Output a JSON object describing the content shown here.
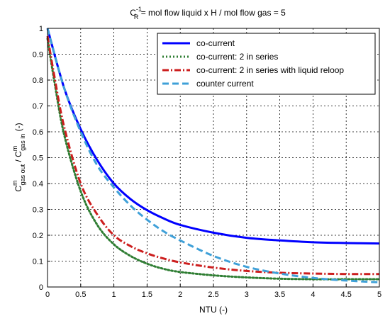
{
  "chart_data": {
    "type": "line",
    "title": {
      "prefix": "C",
      "sup": "-1",
      "sub": "R",
      "rest": " = mol flow liquid x H / mol flow gas = 5"
    },
    "xlabel": "NTU (-)",
    "ylabel": {
      "c1": "C",
      "sup1": "m",
      "sub1": "gas out",
      "mid": " / C",
      "sup2": "m",
      "sub2": "gas in",
      "end": " (-)"
    },
    "xlim": [
      0,
      5
    ],
    "ylim": [
      0,
      1
    ],
    "xticks": [
      "0",
      "0.5",
      "1",
      "1.5",
      "2",
      "2.5",
      "3",
      "3.5",
      "4",
      "4.5",
      "5"
    ],
    "yticks": [
      "0",
      "0.1",
      "0.2",
      "0.3",
      "0.4",
      "0.5",
      "0.6",
      "0.7",
      "0.8",
      "0.9",
      "1"
    ],
    "grid": true,
    "legend_position": "top-right",
    "series": [
      {
        "name": "co-current",
        "color": "#0000ff",
        "style": "solid",
        "x": [
          0,
          0.25,
          0.5,
          0.75,
          1,
          1.25,
          1.5,
          1.75,
          2,
          2.5,
          3,
          3.5,
          4,
          4.5,
          5
        ],
        "y": [
          1.0,
          0.77,
          0.61,
          0.49,
          0.4,
          0.34,
          0.297,
          0.265,
          0.24,
          0.21,
          0.19,
          0.18,
          0.173,
          0.17,
          0.168
        ]
      },
      {
        "name": "co-current: 2 in series",
        "color": "#2e7d32",
        "style": "dotted",
        "x": [
          0,
          0.1,
          0.25,
          0.5,
          0.75,
          1,
          1.25,
          1.5,
          1.75,
          2,
          2.5,
          3,
          3.5,
          4,
          4.5,
          5
        ],
        "y": [
          0.96,
          0.8,
          0.59,
          0.37,
          0.24,
          0.165,
          0.12,
          0.09,
          0.07,
          0.058,
          0.045,
          0.037,
          0.032,
          0.03,
          0.03,
          0.03
        ]
      },
      {
        "name": "co-current: 2 in series with liquid reloop",
        "color": "#cc1e1e",
        "style": "dashdot",
        "x": [
          0,
          0.1,
          0.25,
          0.5,
          0.75,
          1,
          1.25,
          1.5,
          1.75,
          2,
          2.5,
          3,
          3.5,
          4,
          4.5,
          5
        ],
        "y": [
          0.97,
          0.82,
          0.62,
          0.4,
          0.28,
          0.2,
          0.158,
          0.13,
          0.11,
          0.095,
          0.075,
          0.062,
          0.055,
          0.052,
          0.05,
          0.05
        ]
      },
      {
        "name": "counter current",
        "color": "#3fa0d8",
        "style": "dashed",
        "x": [
          0,
          0.25,
          0.5,
          0.75,
          1,
          1.25,
          1.5,
          1.75,
          2,
          2.5,
          3,
          3.5,
          4,
          4.5,
          5
        ],
        "y": [
          1.0,
          0.77,
          0.6,
          0.47,
          0.385,
          0.315,
          0.26,
          0.215,
          0.18,
          0.12,
          0.078,
          0.052,
          0.035,
          0.025,
          0.018
        ]
      }
    ]
  }
}
